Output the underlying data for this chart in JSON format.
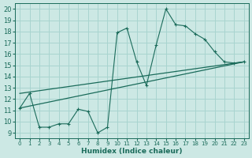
{
  "title": "",
  "xlabel": "Humidex (Indice chaleur)",
  "bg_color": "#cce8e4",
  "grid_color": "#a8d4cf",
  "line_color": "#1a6b5a",
  "xlim": [
    -0.5,
    23.5
  ],
  "ylim": [
    8.5,
    20.5
  ],
  "xticks": [
    0,
    1,
    2,
    3,
    4,
    5,
    6,
    7,
    8,
    9,
    10,
    11,
    12,
    13,
    14,
    15,
    16,
    17,
    18,
    19,
    20,
    21,
    22,
    23
  ],
  "yticks": [
    9,
    10,
    11,
    12,
    13,
    14,
    15,
    16,
    17,
    18,
    19,
    20
  ],
  "series1_x": [
    0,
    1,
    2,
    3,
    4,
    5,
    6,
    7,
    8,
    9,
    10,
    11,
    12,
    13,
    14,
    15,
    16,
    17,
    18,
    19,
    20,
    21,
    22,
    23
  ],
  "series1_y": [
    11.2,
    12.5,
    9.5,
    9.5,
    9.8,
    9.8,
    11.1,
    10.9,
    9.0,
    9.5,
    17.9,
    18.3,
    15.3,
    13.2,
    16.8,
    20.0,
    18.6,
    18.5,
    17.8,
    17.3,
    16.2,
    15.3,
    15.2,
    15.3
  ],
  "series2_x": [
    0,
    23
  ],
  "series2_y": [
    11.2,
    15.3
  ],
  "series3_x": [
    0,
    23
  ],
  "series3_y": [
    12.5,
    15.3
  ]
}
